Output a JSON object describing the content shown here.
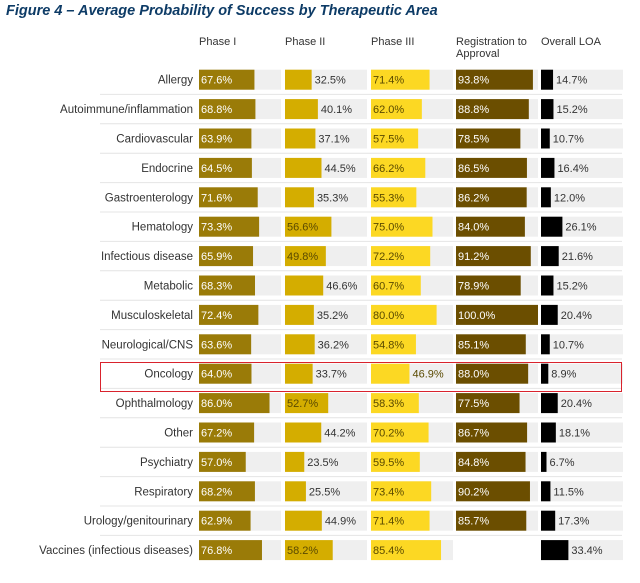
{
  "chart_data": {
    "type": "bar",
    "title": "Figure 4 – Average Probability of Success by Therapeutic Area",
    "columns": [
      "Phase I",
      "Phase II",
      "Phase III",
      "Registration to Approval",
      "Overall LOA"
    ],
    "column_colors": [
      "#9a7b08",
      "#d4ad00",
      "#fcd823",
      "#6b4e00",
      "#000000"
    ],
    "highlighted_row": "Oncology",
    "highlight_color": "#d9232d",
    "rows": [
      {
        "area": "Allergy",
        "values": [
          67.6,
          32.5,
          71.4,
          93.8,
          14.7
        ]
      },
      {
        "area": "Autoimmune/inflammation",
        "values": [
          68.8,
          40.1,
          62.0,
          88.8,
          15.2
        ]
      },
      {
        "area": "Cardiovascular",
        "values": [
          63.9,
          37.1,
          57.5,
          78.5,
          10.7
        ]
      },
      {
        "area": "Endocrine",
        "values": [
          64.5,
          44.5,
          66.2,
          86.5,
          16.4
        ]
      },
      {
        "area": "Gastroenterology",
        "values": [
          71.6,
          35.3,
          55.3,
          86.2,
          12.0
        ]
      },
      {
        "area": "Hematology",
        "values": [
          73.3,
          56.6,
          75.0,
          84.0,
          26.1
        ]
      },
      {
        "area": "Infectious disease",
        "values": [
          65.9,
          49.8,
          72.2,
          91.2,
          21.6
        ]
      },
      {
        "area": "Metabolic",
        "values": [
          68.3,
          46.6,
          60.7,
          78.9,
          15.2
        ]
      },
      {
        "area": "Musculoskeletal",
        "values": [
          72.4,
          35.2,
          80.0,
          100.0,
          20.4
        ]
      },
      {
        "area": "Neurological/CNS",
        "values": [
          63.6,
          36.2,
          54.8,
          85.1,
          10.7
        ]
      },
      {
        "area": "Oncology",
        "values": [
          64.0,
          33.7,
          46.9,
          88.0,
          8.9
        ]
      },
      {
        "area": "Ophthalmology",
        "values": [
          86.0,
          52.7,
          58.3,
          77.5,
          20.4
        ]
      },
      {
        "area": "Other",
        "values": [
          67.2,
          44.2,
          70.2,
          86.7,
          18.1
        ]
      },
      {
        "area": "Psychiatry",
        "values": [
          57.0,
          23.5,
          59.5,
          84.8,
          6.7
        ]
      },
      {
        "area": "Respiratory",
        "values": [
          68.2,
          25.5,
          73.4,
          90.2,
          11.5
        ]
      },
      {
        "area": "Urology/genitourinary",
        "values": [
          62.9,
          44.9,
          71.4,
          85.7,
          17.3
        ]
      },
      {
        "area": "Vaccines (infectious diseases)",
        "values": [
          76.8,
          58.2,
          85.4,
          null,
          33.4
        ]
      }
    ]
  }
}
